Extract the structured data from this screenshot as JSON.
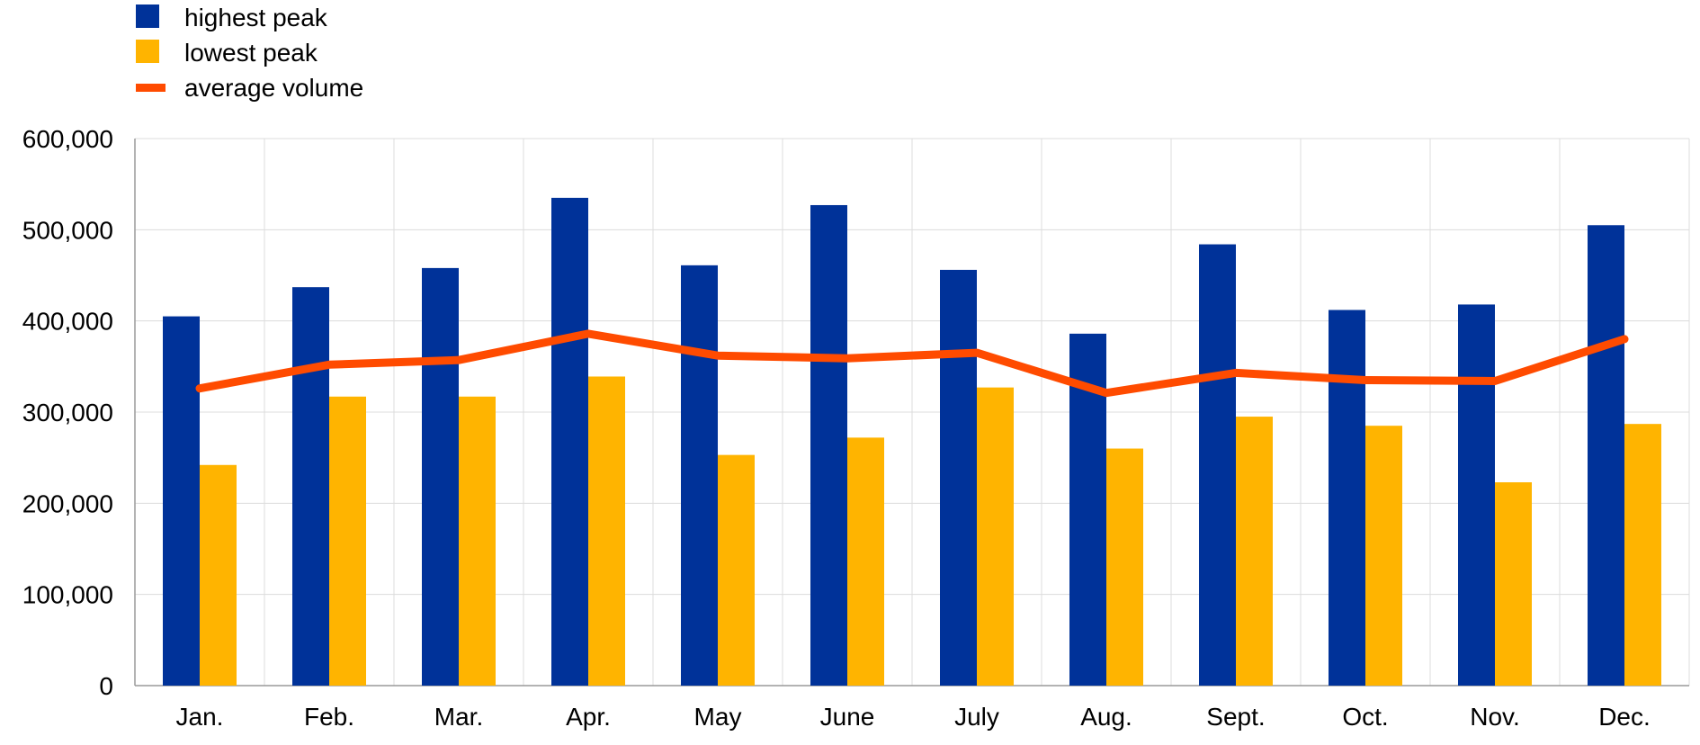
{
  "chart_data": {
    "type": "bar",
    "title": "",
    "xlabel": "",
    "ylabel": "",
    "categories": [
      "Jan.",
      "Feb.",
      "Mar.",
      "Apr.",
      "May",
      "June",
      "July",
      "Aug.",
      "Sept.",
      "Oct.",
      "Nov.",
      "Dec."
    ],
    "ylim": [
      0,
      600000
    ],
    "yticks": [
      0,
      100000,
      200000,
      300000,
      400000,
      500000,
      600000
    ],
    "ytick_labels": [
      "0",
      "100,000",
      "200,000",
      "300,000",
      "400,000",
      "500,000",
      "600,000"
    ],
    "grid": true,
    "legend_position": "top-left",
    "series": [
      {
        "name": "highest peak",
        "kind": "bar",
        "color": "#003299",
        "values": [
          405000,
          437000,
          458000,
          535000,
          461000,
          527000,
          456000,
          386000,
          484000,
          412000,
          418000,
          505000
        ]
      },
      {
        "name": "lowest peak",
        "kind": "bar",
        "color": "#FFB400",
        "values": [
          242000,
          317000,
          317000,
          339000,
          253000,
          272000,
          327000,
          260000,
          295000,
          285000,
          223000,
          287000
        ]
      },
      {
        "name": "average volume",
        "kind": "line",
        "color": "#FF4B00",
        "values": [
          326000,
          352000,
          357000,
          386000,
          362000,
          359000,
          365000,
          321000,
          343000,
          335000,
          334000,
          380000
        ]
      }
    ]
  }
}
